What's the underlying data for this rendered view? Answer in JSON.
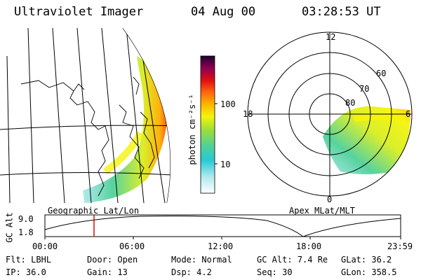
{
  "header": {
    "instrument": "Ultraviolet Imager",
    "date": "04 Aug 00",
    "time": "03:28:53 UT"
  },
  "colorbar": {
    "unit_label": "photon cm⁻²s⁻¹",
    "ticks": [
      "100",
      "10"
    ]
  },
  "polar": {
    "mlt_labels": {
      "top": "12",
      "left": "18",
      "right": "6",
      "bottom": "0"
    },
    "lat_labels": [
      "60",
      "70",
      "80"
    ]
  },
  "labels": {
    "geo": "Geographic Lat/Lon",
    "apex": "Apex MLat/MLT"
  },
  "altitude_plot": {
    "axis_title": "GC Alt",
    "y_ticks": [
      "9.0",
      "1.8"
    ],
    "x_ticks": [
      "00:00",
      "06:00",
      "12:00",
      "18:00",
      "23:59"
    ],
    "marker_time": "03:28:53"
  },
  "info": {
    "row1": [
      {
        "label": "Flt:",
        "value": "LBHL"
      },
      {
        "label": "Door:",
        "value": "Open"
      },
      {
        "label": "Mode:",
        "value": "Normal"
      },
      {
        "label": "GC Alt:",
        "value": "7.4 Re"
      },
      {
        "label": "GLat:",
        "value": "36.2"
      }
    ],
    "row2": [
      {
        "label": "IP:",
        "value": "36.0"
      },
      {
        "label": "Gain:",
        "value": "13"
      },
      {
        "label": "Dsp:",
        "value": "4.2"
      },
      {
        "label": "Seq:",
        "value": "30"
      },
      {
        "label": "GLon:",
        "value": "358.5"
      }
    ]
  },
  "colors": {
    "marker": "#d01010",
    "colorscale": [
      "#ffffff",
      "#aee9ee",
      "#27c9d6",
      "#4fd09a",
      "#9ade3c",
      "#f4f40a",
      "#ffac00",
      "#ff6010",
      "#e01010",
      "#900050",
      "#200030"
    ]
  }
}
